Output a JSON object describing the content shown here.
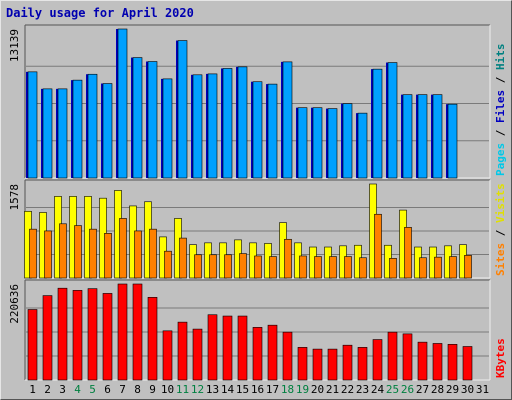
{
  "chart_data": {
    "type": "bar",
    "title": "Daily usage for April 2020",
    "days": [
      "1",
      "2",
      "3",
      "4",
      "5",
      "6",
      "7",
      "8",
      "9",
      "10",
      "11",
      "12",
      "13",
      "14",
      "15",
      "16",
      "17",
      "18",
      "19",
      "20",
      "21",
      "22",
      "23",
      "24",
      "25",
      "26",
      "27",
      "28",
      "29",
      "30",
      "31"
    ],
    "weekend_days": [
      "4",
      "5",
      "11",
      "12",
      "18",
      "19",
      "25",
      "26"
    ],
    "colors": {
      "hits": "#00a0ff",
      "files": "#0000c0",
      "pages": "#00c8e8",
      "visits": "#ffff00",
      "sites": "#ff8000",
      "kbytes": "#ff0000",
      "weekend_label": "#008040",
      "weekday_label": "#000000",
      "title": "#0000b0"
    },
    "panels": [
      {
        "name": "hits",
        "max_label": "13139",
        "ymax": 13139,
        "right_label": [
          {
            "text": "Pages",
            "color": "#00c8e8"
          },
          {
            "text": " / ",
            "color": "#000000"
          },
          {
            "text": "Files",
            "color": "#0000c0"
          },
          {
            "text": " / ",
            "color": "#000000"
          },
          {
            "text": "Hits",
            "color": "#008080"
          }
        ],
        "series": [
          {
            "key": "hits",
            "values": [
              9360,
              7860,
              7860,
              8630,
              9150,
              8330,
              13139,
              10620,
              10270,
              8740,
              12120,
              9100,
              9180,
              9660,
              9800,
              8490,
              8280,
              10240,
              6200,
              6200,
              6120,
              6560,
              5720,
              9600,
              10180,
              7350,
              7350,
              7350,
              6510,
              0,
              0
            ]
          }
        ]
      },
      {
        "name": "visits",
        "max_label": "1578",
        "ymax": 1578,
        "right_label": [
          {
            "text": "Sites",
            "color": "#ff8000"
          },
          {
            "text": " / ",
            "color": "#000000"
          },
          {
            "text": "Visits",
            "color": "#e0e000"
          }
        ],
        "series": [
          {
            "key": "visits",
            "values": [
              1120,
              1100,
              1370,
              1370,
              1370,
              1340,
              1470,
              1210,
              1280,
              690,
              1000,
              560,
              590,
              590,
              640,
              590,
              580,
              930,
              590,
              520,
              520,
              540,
              550,
              1578,
              550,
              1140,
              520,
              520,
              540,
              560,
              0
            ]
          },
          {
            "key": "sites",
            "values": [
              820,
              790,
              910,
              880,
              820,
              750,
              1000,
              790,
              820,
              450,
              670,
              390,
              390,
              390,
              410,
              370,
              360,
              650,
              370,
              360,
              360,
              360,
              340,
              1070,
              330,
              850,
              340,
              350,
              360,
              380,
              0
            ]
          }
        ]
      },
      {
        "name": "kbytes",
        "max_label": "220636",
        "ymax": 220636,
        "right_label": [
          {
            "text": "KBytes",
            "color": "#ff0000"
          }
        ],
        "series": [
          {
            "key": "kbytes",
            "values": [
              162000,
              194000,
              211000,
              206000,
              210000,
              199000,
              220636,
              220636,
              190000,
              113000,
              133000,
              117000,
              150000,
              147000,
              147000,
              121000,
              126000,
              110000,
              75000,
              71000,
              71000,
              80000,
              75000,
              93000,
              110000,
              106000,
              87000,
              84000,
              82000,
              77000,
              0
            ]
          }
        ]
      }
    ]
  }
}
